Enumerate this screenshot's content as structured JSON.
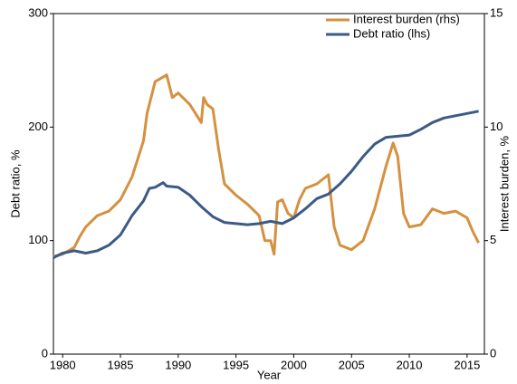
{
  "chart_data": {
    "type": "line",
    "x_label": "Year",
    "y_label": "Debt ratio, %",
    "y2_label": "Interest burden, %",
    "xlim": [
      1979.2,
      2016.5
    ],
    "xticks": [
      1980,
      1985,
      1990,
      1995,
      2000,
      2005,
      2010,
      2015
    ],
    "ylim": [
      0,
      300
    ],
    "yticks": [
      0,
      100,
      200,
      300
    ],
    "y2lim": [
      0,
      15
    ],
    "y2ticks": [
      0,
      5,
      10,
      15
    ],
    "legend": "upper right",
    "series": [
      {
        "name": "Interest burden (rhs)",
        "color": "#d4913f",
        "axis": "y2",
        "x": [
          1979.2,
          1980,
          1981,
          1981.5,
          1982,
          1983,
          1984,
          1985,
          1986,
          1987,
          1987.3,
          1988,
          1989,
          1989.5,
          1990,
          1991,
          1992,
          1992.2,
          1992.5,
          1993,
          1993.5,
          1994,
          1995,
          1996,
          1997,
          1997.5,
          1998,
          1998.3,
          1998.6,
          1999,
          1999.5,
          2000,
          2000.5,
          2001,
          2002,
          2002.5,
          2003,
          2003.5,
          2004,
          2005,
          2006,
          2007,
          2008,
          2008.6,
          2009,
          2009.5,
          2010,
          2011,
          2012,
          2013,
          2014,
          2015,
          2015.5,
          2016
        ],
        "values": [
          4.3,
          4.4,
          4.7,
          5.2,
          5.6,
          6.1,
          6.3,
          6.8,
          7.8,
          9.4,
          10.6,
          12.0,
          12.3,
          11.3,
          11.5,
          11.0,
          10.2,
          11.3,
          11.0,
          10.8,
          9.0,
          7.5,
          7.0,
          6.6,
          6.1,
          5.0,
          5.0,
          4.4,
          6.7,
          6.8,
          6.2,
          6.0,
          6.8,
          7.3,
          7.5,
          7.7,
          7.9,
          5.6,
          4.8,
          4.6,
          5.0,
          6.4,
          8.3,
          9.3,
          8.7,
          6.2,
          5.6,
          5.7,
          6.4,
          6.2,
          6.3,
          6.0,
          5.4,
          4.9
        ]
      },
      {
        "name": "Debt ratio (lhs)",
        "color": "#3c5a85",
        "x": [
          1979.2,
          1980,
          1981,
          1982,
          1983,
          1984,
          1985,
          1986,
          1987,
          1987.5,
          1988,
          1988.7,
          1989,
          1990,
          1991,
          1992,
          1993,
          1994,
          1995,
          1996,
          1997,
          1998,
          1999,
          2000,
          2001,
          2002,
          2003,
          2004,
          2005,
          2006,
          2007,
          2008,
          2009,
          2010,
          2011,
          2012,
          2013,
          2014,
          2015,
          2016
        ],
        "values": [
          85,
          89,
          91,
          89,
          91,
          96,
          105,
          122,
          135,
          146,
          147,
          151,
          148,
          147,
          140,
          130,
          121,
          116,
          115,
          114,
          115,
          117,
          115,
          120,
          128,
          137,
          141,
          150,
          161,
          174,
          185,
          191,
          192,
          193,
          198,
          204,
          208,
          210,
          212,
          214
        ]
      }
    ]
  }
}
